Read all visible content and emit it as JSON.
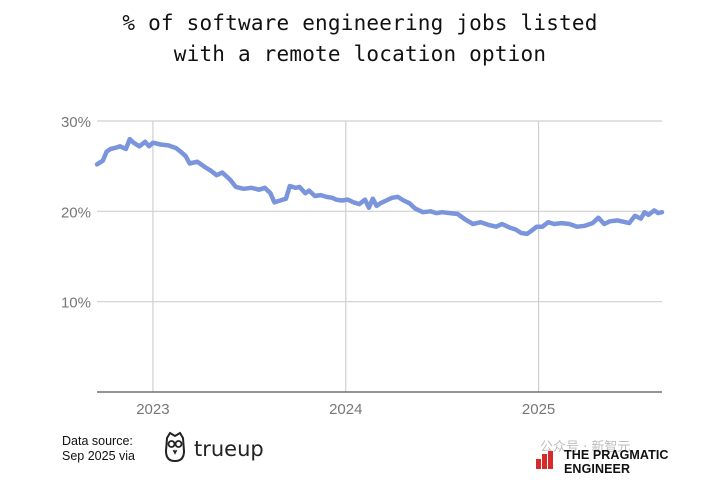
{
  "title": {
    "line1": "% of software engineering jobs listed",
    "line2": "with a remote location option"
  },
  "footer": {
    "source_line1": "Data source:",
    "source_line2": "Sep 2025 via",
    "source_brand": "trueup",
    "watermark": "公众号 · 新智元",
    "publisher": "THE PRAGMATIC ENGINEER"
  },
  "colors": {
    "line": "#7b95dd",
    "grid": "#cfcfcf",
    "axis_text": "#777777"
  },
  "chart_data": {
    "type": "line",
    "title": "% of software engineering jobs listed with a remote location option",
    "xlabel": "",
    "ylabel": "",
    "ylim": [
      0,
      30
    ],
    "xlim": [
      2022.71,
      2025.64
    ],
    "y_ticks": [
      {
        "value": 30,
        "label": "30%"
      },
      {
        "value": 20,
        "label": "20%"
      },
      {
        "value": 10,
        "label": "10%"
      }
    ],
    "x_ticks": [
      {
        "value": 2023,
        "label": "2023"
      },
      {
        "value": 2024,
        "label": "2024"
      },
      {
        "value": 2025,
        "label": "2025"
      }
    ],
    "grid": true,
    "legend": "none",
    "series": [
      {
        "x": [
          2022.71,
          2022.74,
          2022.76,
          2022.78,
          2022.8,
          2022.83,
          2022.86,
          2022.88,
          2022.9,
          2022.93,
          2022.96,
          2022.98,
          2023.0,
          2023.04,
          2023.08,
          2023.12,
          2023.15,
          2023.17,
          2023.19,
          2023.23,
          2023.27,
          2023.3,
          2023.33,
          2023.36,
          2023.4,
          2023.43,
          2023.47,
          2023.51,
          2023.55,
          2023.58,
          2023.61,
          2023.63,
          2023.66,
          2023.69,
          2023.71,
          2023.74,
          2023.76,
          2023.79,
          2023.81,
          2023.84,
          2023.87,
          2023.9,
          2023.93,
          2023.95,
          2023.98,
          2024.01,
          2024.04,
          2024.07,
          2024.1,
          2024.12,
          2024.14,
          2024.16,
          2024.18,
          2024.21,
          2024.24,
          2024.27,
          2024.3,
          2024.33,
          2024.36,
          2024.4,
          2024.44,
          2024.47,
          2024.5,
          2024.54,
          2024.58,
          2024.62,
          2024.66,
          2024.7,
          2024.74,
          2024.78,
          2024.81,
          2024.85,
          2024.88,
          2024.91,
          2024.94,
          2024.96,
          2024.99,
          2025.02,
          2025.05,
          2025.08,
          2025.12,
          2025.16,
          2025.2,
          2025.24,
          2025.28,
          2025.31,
          2025.34,
          2025.37,
          2025.41,
          2025.45,
          2025.47,
          2025.5,
          2025.53,
          2025.55,
          2025.57,
          2025.6,
          2025.62,
          2025.64
        ],
        "values": [
          25.2,
          25.6,
          26.6,
          26.9,
          27.0,
          27.2,
          26.9,
          28.0,
          27.6,
          27.2,
          27.7,
          27.2,
          27.6,
          27.4,
          27.3,
          27.0,
          26.5,
          26.1,
          25.3,
          25.5,
          24.9,
          24.5,
          24.0,
          24.3,
          23.5,
          22.7,
          22.5,
          22.6,
          22.4,
          22.6,
          22.0,
          21.0,
          21.2,
          21.4,
          22.8,
          22.6,
          22.7,
          22.0,
          22.3,
          21.7,
          21.8,
          21.6,
          21.5,
          21.3,
          21.2,
          21.3,
          21.0,
          20.8,
          21.3,
          20.4,
          21.4,
          20.6,
          20.9,
          21.2,
          21.5,
          21.6,
          21.2,
          20.9,
          20.3,
          19.9,
          20.0,
          19.8,
          19.9,
          19.8,
          19.7,
          19.1,
          18.6,
          18.8,
          18.5,
          18.3,
          18.6,
          18.2,
          18.0,
          17.6,
          17.5,
          17.8,
          18.3,
          18.3,
          18.8,
          18.6,
          18.7,
          18.6,
          18.3,
          18.4,
          18.7,
          19.3,
          18.6,
          18.9,
          19.0,
          18.8,
          18.7,
          19.5,
          19.2,
          19.9,
          19.6,
          20.1,
          19.8,
          19.9
        ]
      }
    ]
  }
}
